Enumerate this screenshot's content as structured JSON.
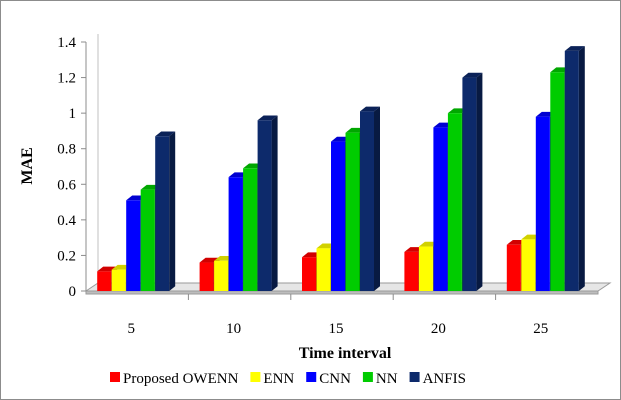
{
  "chart_data": {
    "type": "bar",
    "categories": [
      "5",
      "10",
      "15",
      "20",
      "25"
    ],
    "series": [
      {
        "name": "Proposed OWENN",
        "color": "#ff0000",
        "values": [
          0.11,
          0.16,
          0.19,
          0.22,
          0.26
        ]
      },
      {
        "name": "ENN",
        "color": "#ffff00",
        "values": [
          0.12,
          0.17,
          0.24,
          0.25,
          0.29
        ]
      },
      {
        "name": "CNN",
        "color": "#0000ff",
        "values": [
          0.51,
          0.64,
          0.84,
          0.92,
          0.98
        ]
      },
      {
        "name": "NN",
        "color": "#00cc00",
        "values": [
          0.57,
          0.69,
          0.89,
          1.0,
          1.23
        ]
      },
      {
        "name": "ANFIS",
        "color": "#0d2a6b",
        "values": [
          0.87,
          0.96,
          1.01,
          1.2,
          1.35
        ]
      }
    ],
    "xlabel": "Time interval",
    "ylabel": "MAE",
    "ylim": [
      0,
      1.4
    ],
    "yticks": [
      "0",
      "0.2",
      "0.4",
      "0.6",
      "0.8",
      "1",
      "1.2",
      "1.4"
    ],
    "grid": false,
    "legend": "bottom"
  }
}
